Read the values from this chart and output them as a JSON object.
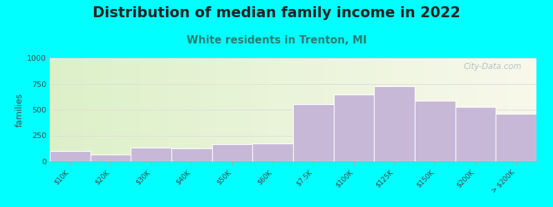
{
  "title": "Distribution of median family income in 2022",
  "subtitle": "White residents in Trenton, MI",
  "categories": [
    "$10K",
    "$20K",
    "$30K",
    "$40K",
    "$50K",
    "$60K",
    "$7.5K",
    "$100K",
    "$125K",
    "$150K",
    "$200K",
    "> $200K"
  ],
  "values": [
    100,
    65,
    135,
    125,
    165,
    175,
    555,
    645,
    725,
    590,
    525,
    460
  ],
  "bar_color": "#c8b8d8",
  "bar_edge_color": "#ffffff",
  "background_color": "#00ffff",
  "ylabel": "families",
  "ylim": [
    0,
    1000
  ],
  "yticks": [
    0,
    250,
    500,
    750,
    1000
  ],
  "title_fontsize": 15,
  "title_color": "#222222",
  "subtitle_fontsize": 11,
  "subtitle_color": "#2a7d6e",
  "watermark": "City-Data.com",
  "watermark_color": "#aab8c0",
  "grid_color": "#dddddd",
  "tick_label_fontsize": 7,
  "ytick_label_fontsize": 8
}
